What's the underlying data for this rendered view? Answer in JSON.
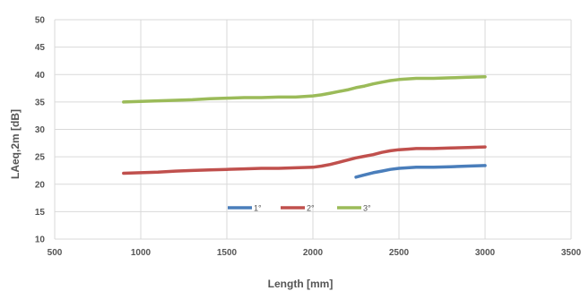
{
  "chart_data": {
    "type": "line",
    "xlabel": "Length [mm]",
    "ylabel": "LAeq,2m [dB]",
    "xlim": [
      500,
      3500
    ],
    "ylim": [
      10,
      50
    ],
    "xticks": [
      "500",
      "1000",
      "1500",
      "2000",
      "2500",
      "3000",
      "3500"
    ],
    "yticks": [
      "10",
      "15",
      "20",
      "25",
      "30",
      "35",
      "40",
      "45",
      "50"
    ],
    "grid": true,
    "legend_position": "inside-bottom-center",
    "series": [
      {
        "name": "1°",
        "color": "#4a7ebb",
        "x": [
          2250,
          2300,
          2350,
          2400,
          2450,
          2500,
          2550,
          2600,
          2700,
          2800,
          2900,
          3000
        ],
        "y": [
          21.3,
          21.7,
          22.1,
          22.4,
          22.7,
          22.9,
          23.0,
          23.1,
          23.1,
          23.2,
          23.3,
          23.4
        ]
      },
      {
        "name": "2°",
        "color": "#c0504d",
        "x": [
          900,
          1000,
          1100,
          1200,
          1300,
          1400,
          1500,
          1600,
          1700,
          1800,
          1900,
          2000,
          2050,
          2100,
          2150,
          2200,
          2250,
          2300,
          2350,
          2400,
          2450,
          2500,
          2550,
          2600,
          2700,
          2800,
          2900,
          3000
        ],
        "y": [
          22.0,
          22.1,
          22.2,
          22.4,
          22.5,
          22.6,
          22.7,
          22.8,
          22.9,
          22.9,
          23.0,
          23.1,
          23.3,
          23.6,
          24.0,
          24.4,
          24.8,
          25.1,
          25.4,
          25.8,
          26.1,
          26.3,
          26.4,
          26.5,
          26.5,
          26.6,
          26.7,
          26.8
        ]
      },
      {
        "name": "3°",
        "color": "#9bbb59",
        "x": [
          900,
          1000,
          1100,
          1200,
          1300,
          1400,
          1500,
          1600,
          1700,
          1800,
          1900,
          1950,
          2000,
          2050,
          2100,
          2150,
          2200,
          2250,
          2300,
          2350,
          2400,
          2450,
          2500,
          2550,
          2600,
          2700,
          2800,
          2900,
          3000
        ],
        "y": [
          35.0,
          35.1,
          35.2,
          35.3,
          35.4,
          35.6,
          35.7,
          35.8,
          35.8,
          35.9,
          35.9,
          36.0,
          36.1,
          36.3,
          36.6,
          36.9,
          37.2,
          37.6,
          37.9,
          38.3,
          38.6,
          38.9,
          39.1,
          39.2,
          39.3,
          39.3,
          39.4,
          39.5,
          39.6
        ]
      }
    ]
  }
}
